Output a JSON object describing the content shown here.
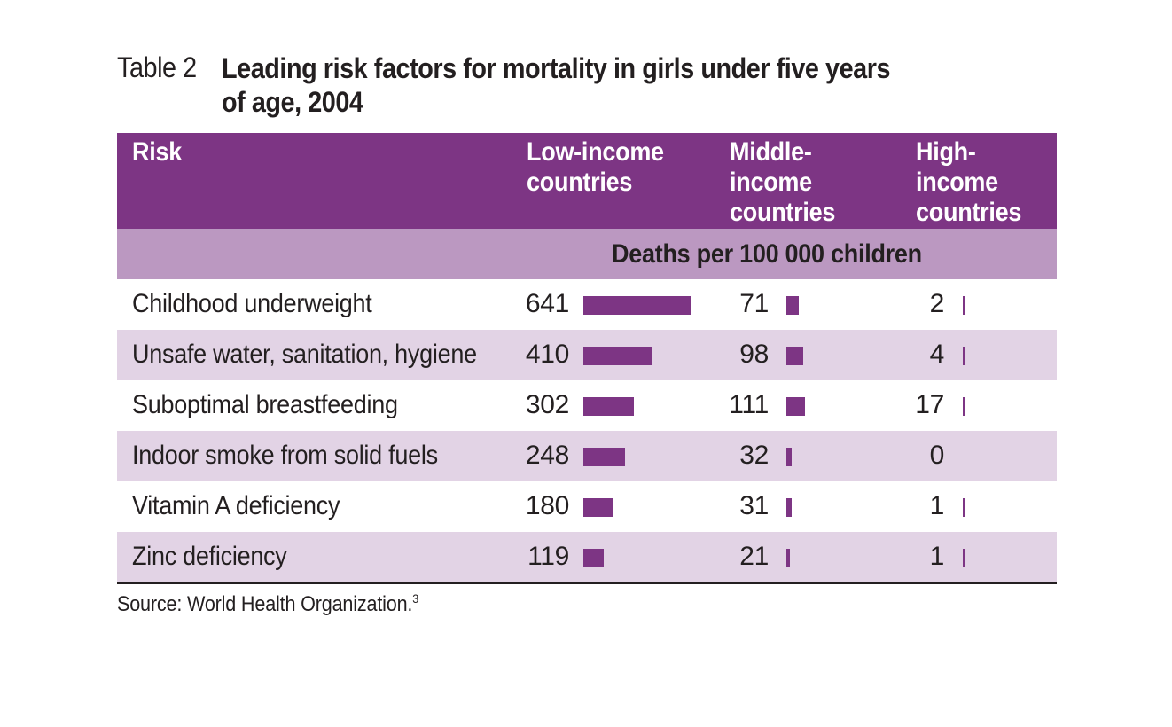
{
  "title": {
    "table_label": "Table 2",
    "text": "Leading risk factors for mortality in girls under five years of age, 2004"
  },
  "header": {
    "risk": "Risk",
    "low": "Low-income countries",
    "middle": "Middle-income countries",
    "high": "High-income countries",
    "units": "Deaths per 100 000 children"
  },
  "source": "Source: World Health Organization.",
  "source_ref": "3",
  "colors": {
    "accent": "#7d3584",
    "header_sub": "#bb98c1",
    "row_shade": "#e2d3e5"
  },
  "chart_data": {
    "type": "table",
    "title": "Leading risk factors for mortality in girls under five years of age, 2004",
    "columns": [
      "Risk",
      "Low-income countries",
      "Middle-income countries",
      "High-income countries"
    ],
    "units": "Deaths per 100 000 children",
    "categories": [
      "Childhood underweight",
      "Unsafe water, sanitation, hygiene",
      "Suboptimal breastfeeding",
      "Indoor smoke from solid fuels",
      "Vitamin A deficiency",
      "Zinc deficiency"
    ],
    "series": [
      {
        "name": "Low-income countries",
        "values": [
          641,
          410,
          302,
          248,
          180,
          119
        ]
      },
      {
        "name": "Middle-income countries",
        "values": [
          71,
          98,
          111,
          32,
          31,
          21
        ]
      },
      {
        "name": "High-income countries",
        "values": [
          2,
          4,
          17,
          0,
          1,
          1
        ]
      }
    ]
  }
}
